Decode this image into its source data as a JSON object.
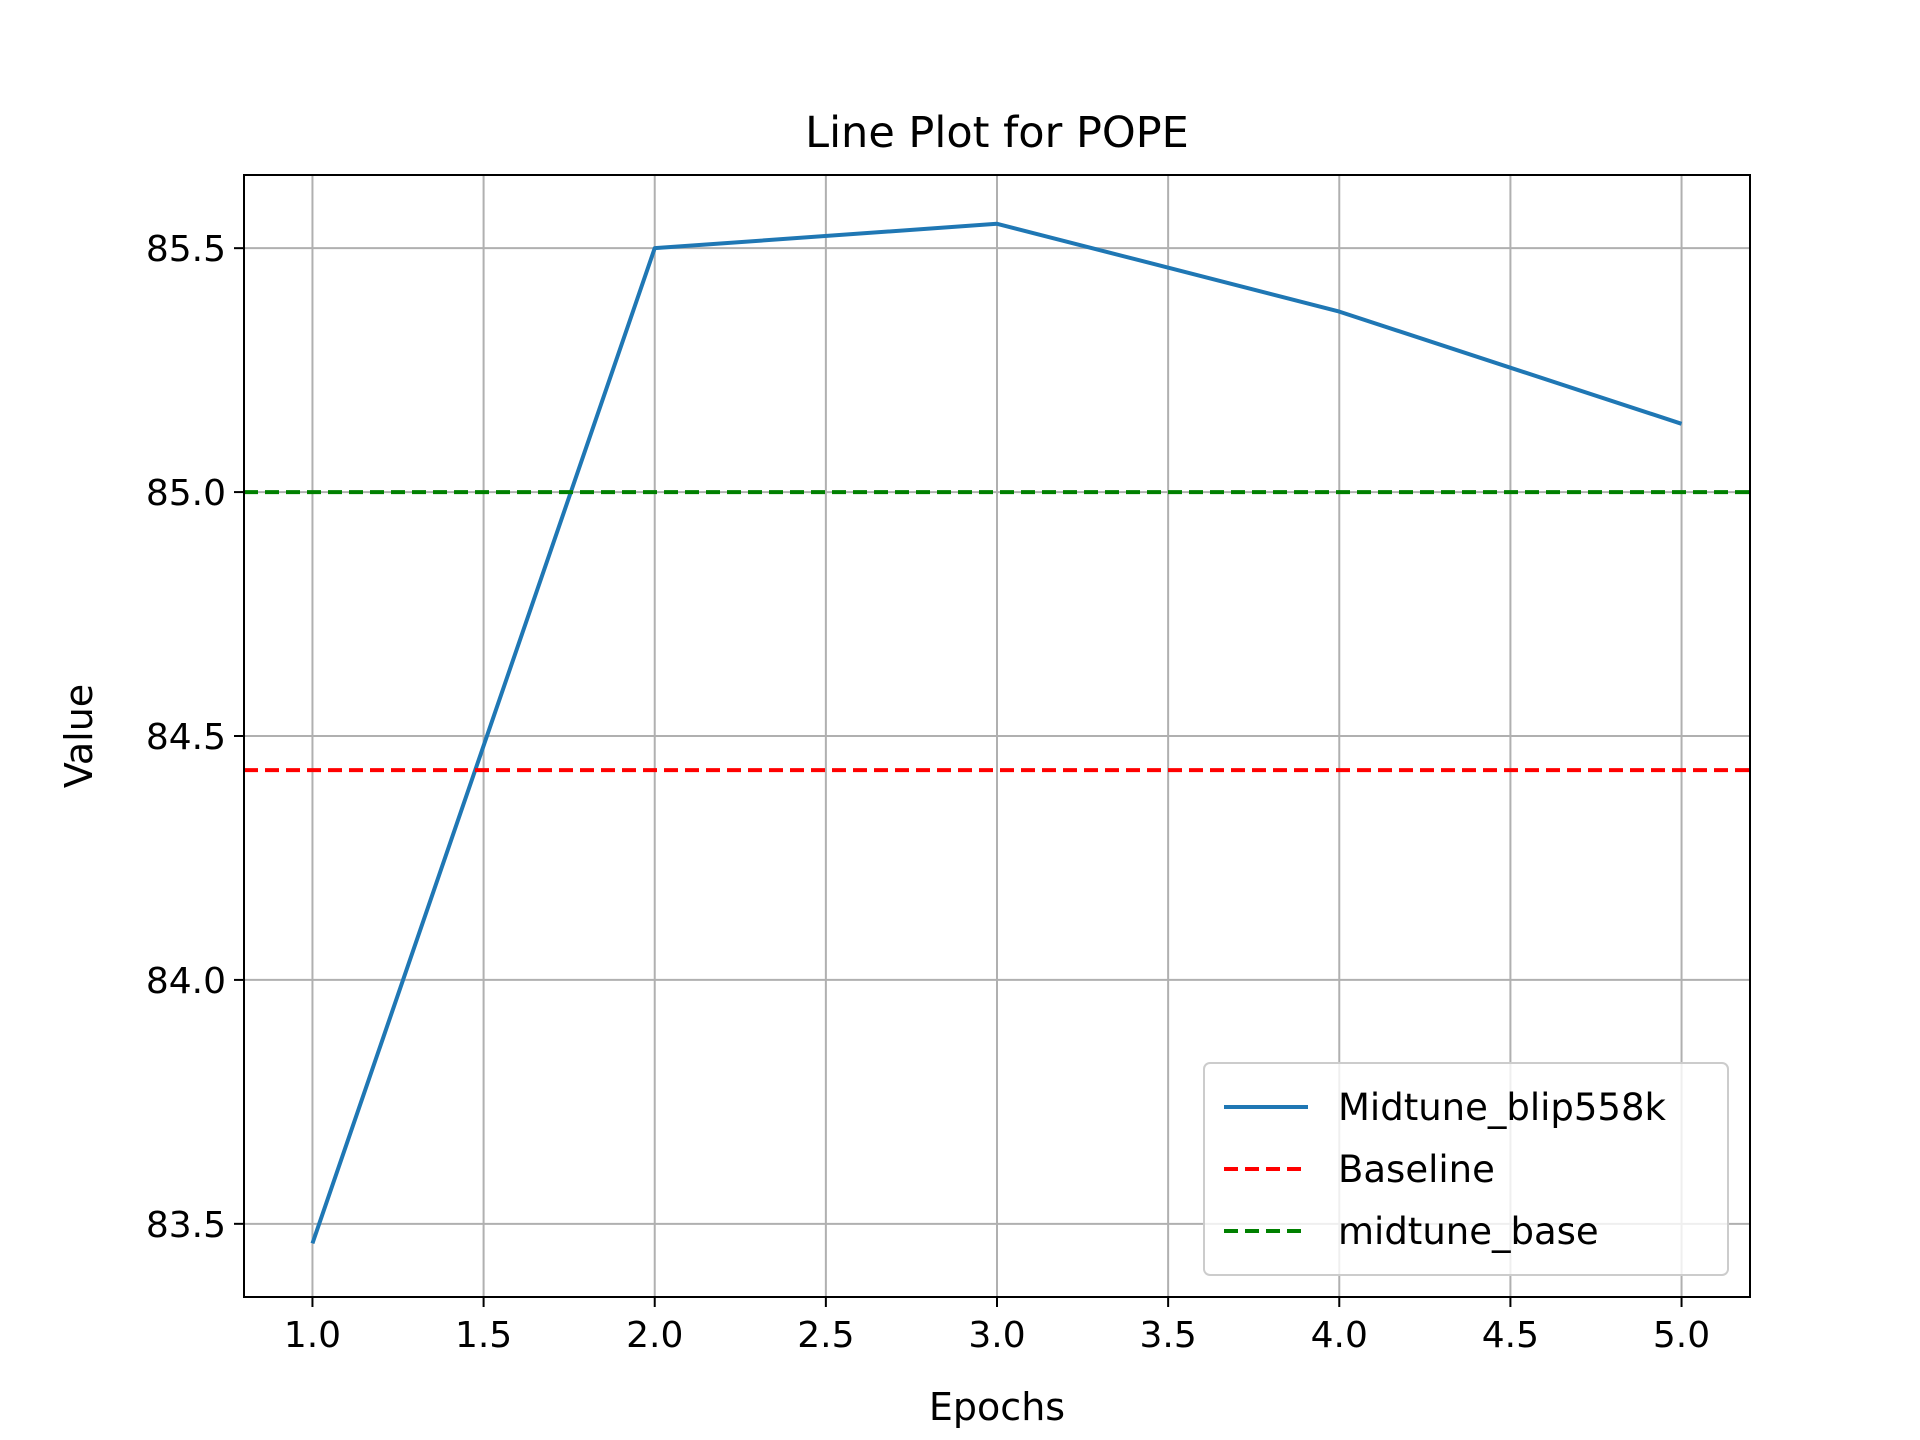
{
  "chart_data": {
    "type": "line",
    "title": "Line Plot for POPE",
    "xlabel": "Epochs",
    "ylabel": "Value",
    "xlim": [
      0.8,
      5.2
    ],
    "ylim": [
      83.35,
      85.65
    ],
    "x_ticks": [
      1.0,
      1.5,
      2.0,
      2.5,
      3.0,
      3.5,
      4.0,
      4.5,
      5.0
    ],
    "x_tick_labels": [
      "1.0",
      "1.5",
      "2.0",
      "2.5",
      "3.0",
      "3.5",
      "4.0",
      "4.5",
      "5.0"
    ],
    "y_ticks": [
      83.5,
      84.0,
      84.5,
      85.0,
      85.5
    ],
    "y_tick_labels": [
      "83.5",
      "84.0",
      "84.5",
      "85.0",
      "85.5"
    ],
    "grid": true,
    "legend_position": "lower-right",
    "series": [
      {
        "name": "Midtune_blip558k",
        "style": "solid",
        "color": "#1f77b4",
        "x": [
          1,
          2,
          3,
          4,
          5
        ],
        "values": [
          83.46,
          85.5,
          85.55,
          85.37,
          85.14
        ]
      },
      {
        "name": "Baseline",
        "style": "dashed",
        "color": "#ff0000",
        "hline": 84.43
      },
      {
        "name": "midtune_base",
        "style": "dashed",
        "color": "#008000",
        "hline": 85.0
      }
    ]
  }
}
